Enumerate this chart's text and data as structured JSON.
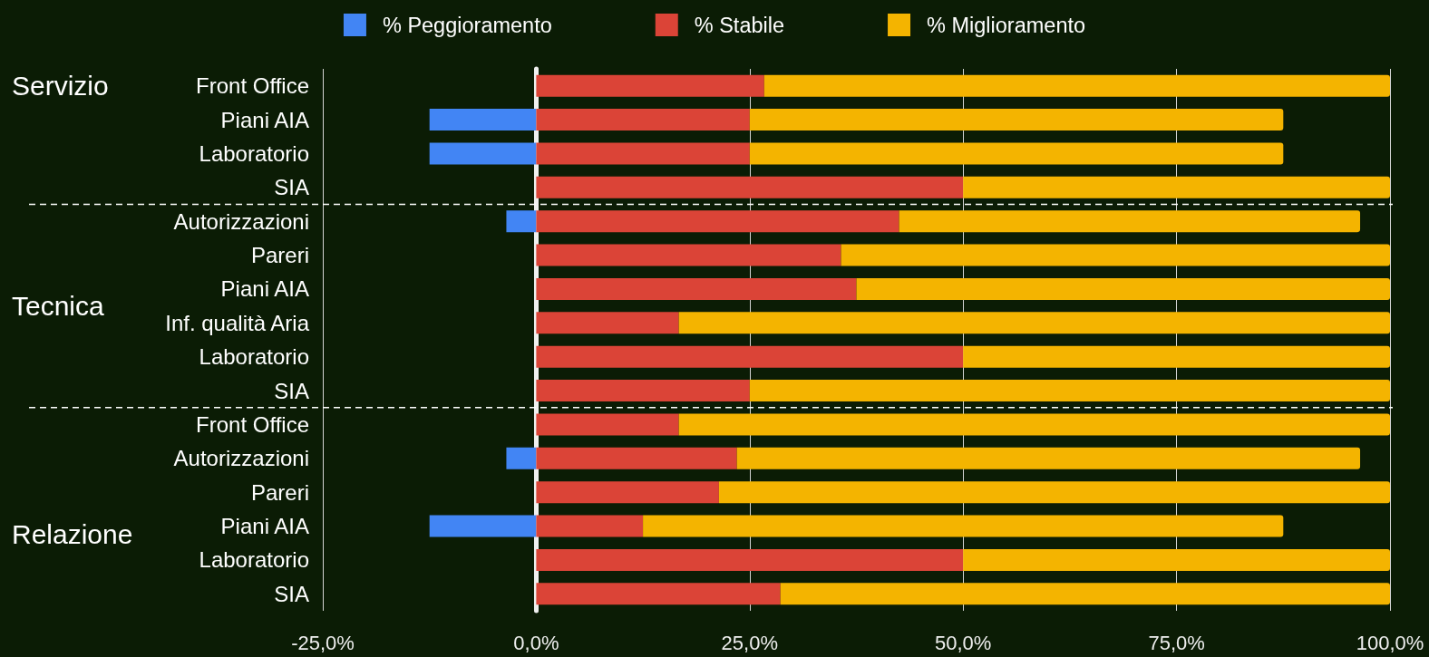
{
  "chart_data": {
    "type": "bar",
    "orientation": "horizontal",
    "stacked": true,
    "categories": [
      "Front Office",
      "Piani AIA",
      "Laboratorio",
      "SIA",
      "Autorizzazioni",
      "Pareri",
      "Piani AIA",
      "Inf. qualità Aria",
      "Laboratorio",
      "SIA",
      "Front Office",
      "Autorizzazioni",
      "Pareri",
      "Piani AIA",
      "Laboratorio",
      "SIA"
    ],
    "series": [
      {
        "name": "% Peggioramento",
        "color": "#4285f4",
        "values": [
          null,
          -12.5,
          -12.5,
          null,
          -3.5,
          null,
          null,
          null,
          null,
          null,
          null,
          -3.5,
          null,
          -12.5,
          null,
          null
        ]
      },
      {
        "name": "% Stabile",
        "color": "#db4437",
        "values": [
          26.7,
          25,
          25,
          50,
          42.5,
          35.7,
          37.5,
          16.7,
          50,
          25,
          16.7,
          23.5,
          21.4,
          12.5,
          50,
          28.6
        ]
      },
      {
        "name": "% Miglioramento",
        "color": "#f4b400",
        "values": [
          73.3,
          62.5,
          62.5,
          50,
          54,
          64.3,
          62.5,
          83.3,
          50,
          75,
          83.3,
          73,
          78.6,
          75,
          50,
          71.4
        ]
      }
    ],
    "xlim": [
      -25,
      100
    ],
    "xticks": [
      {
        "value": -25,
        "label": "-25,0%"
      },
      {
        "value": 0,
        "label": "0,0%"
      },
      {
        "value": 25,
        "label": "25,0%"
      },
      {
        "value": 50,
        "label": "50,0%"
      },
      {
        "value": 75,
        "label": "75,0%"
      },
      {
        "value": 100,
        "label": "100,0%"
      }
    ],
    "annotations": [
      "Servizio",
      "Tecnica",
      "Relazione"
    ],
    "grid": "x",
    "legend": "top"
  }
}
